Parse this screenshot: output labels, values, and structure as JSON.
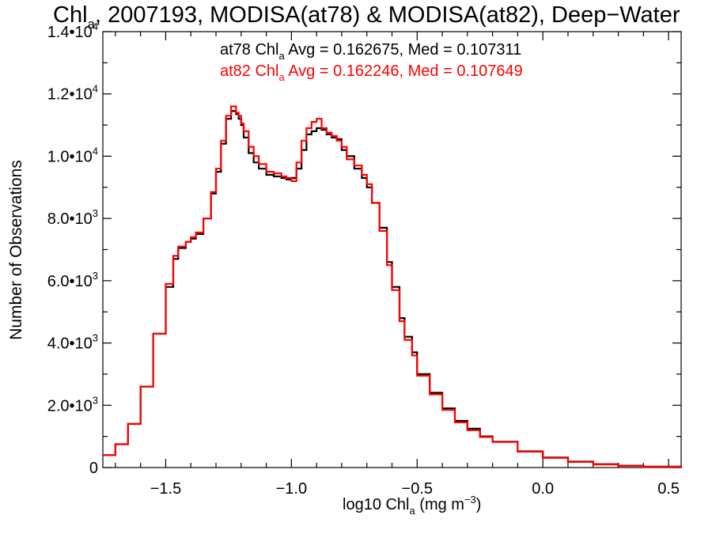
{
  "chart_data": {
    "type": "line",
    "title": {
      "text_before": "Chl",
      "sub": "a",
      "text_after": ", 2007193, MODISA(at78) & MODISA(at82), Deep-Water"
    },
    "xlabel": {
      "pre": "log10 Chl",
      "sub": "a",
      "mid": " (mg m",
      "sup": "-3",
      "post": ")"
    },
    "ylabel": "Number of Observations",
    "xlim": [
      -1.75,
      0.55
    ],
    "ylim": [
      0,
      14000
    ],
    "x_ticks": [
      {
        "value": -1.5,
        "label": "-1.5"
      },
      {
        "value": -1.0,
        "label": "-1.0"
      },
      {
        "value": -0.5,
        "label": "-0.5"
      },
      {
        "value": 0.0,
        "label": "0.0"
      },
      {
        "value": 0.5,
        "label": "0.5"
      }
    ],
    "y_ticks": [
      {
        "value": 0,
        "label": "0",
        "exp": ""
      },
      {
        "value": 2000,
        "label": "2.0•10",
        "exp": "3"
      },
      {
        "value": 4000,
        "label": "4.0•10",
        "exp": "3"
      },
      {
        "value": 6000,
        "label": "6.0•10",
        "exp": "3"
      },
      {
        "value": 8000,
        "label": "8.0•10",
        "exp": "3"
      },
      {
        "value": 10000,
        "label": "1.0•10",
        "exp": "4"
      },
      {
        "value": 12000,
        "label": "1.2•10",
        "exp": "4"
      },
      {
        "value": 14000,
        "label": "1.4•10",
        "exp": "4"
      }
    ],
    "grid": false,
    "series": [
      {
        "name": "at78",
        "color": "#000000",
        "stats": {
          "pre": "at78 Chl",
          "sub": "a",
          "post": " Avg = 0.162675, Med = 0.107311"
        },
        "x": [
          -1.75,
          -1.7,
          -1.65,
          -1.6,
          -1.55,
          -1.5,
          -1.47,
          -1.45,
          -1.42,
          -1.4,
          -1.38,
          -1.35,
          -1.32,
          -1.3,
          -1.28,
          -1.26,
          -1.24,
          -1.22,
          -1.21,
          -1.2,
          -1.19,
          -1.17,
          -1.15,
          -1.13,
          -1.1,
          -1.07,
          -1.04,
          -1.02,
          -1.0,
          -0.98,
          -0.96,
          -0.94,
          -0.92,
          -0.9,
          -0.88,
          -0.86,
          -0.84,
          -0.82,
          -0.8,
          -0.78,
          -0.75,
          -0.72,
          -0.7,
          -0.68,
          -0.65,
          -0.62,
          -0.6,
          -0.57,
          -0.55,
          -0.52,
          -0.5,
          -0.45,
          -0.4,
          -0.35,
          -0.3,
          -0.25,
          -0.2,
          -0.1,
          0.0,
          0.1,
          0.2,
          0.3,
          0.4,
          0.55
        ],
        "y": [
          400,
          750,
          1400,
          2600,
          4300,
          5800,
          6700,
          7050,
          7250,
          7350,
          7500,
          8000,
          8800,
          9500,
          10400,
          11200,
          11450,
          11350,
          11200,
          11000,
          10600,
          10100,
          9800,
          9600,
          9400,
          9350,
          9300,
          9250,
          9300,
          9600,
          10200,
          10700,
          10800,
          10900,
          10850,
          10700,
          10600,
          10550,
          10200,
          10000,
          9600,
          9300,
          9000,
          8500,
          7700,
          6600,
          5800,
          4800,
          4200,
          3700,
          3000,
          2400,
          1900,
          1500,
          1250,
          1000,
          830,
          520,
          320,
          190,
          110,
          60,
          30,
          0
        ]
      },
      {
        "name": "at82",
        "color": "#ff0000",
        "stats": {
          "pre": "at82 Chl",
          "sub": "a",
          "post": " Avg = 0.162246, Med = 0.107649"
        },
        "x": [
          -1.75,
          -1.7,
          -1.65,
          -1.6,
          -1.55,
          -1.5,
          -1.47,
          -1.45,
          -1.42,
          -1.4,
          -1.38,
          -1.35,
          -1.32,
          -1.3,
          -1.28,
          -1.26,
          -1.24,
          -1.22,
          -1.21,
          -1.2,
          -1.19,
          -1.17,
          -1.15,
          -1.13,
          -1.1,
          -1.07,
          -1.04,
          -1.02,
          -1.0,
          -0.98,
          -0.96,
          -0.94,
          -0.92,
          -0.9,
          -0.88,
          -0.86,
          -0.84,
          -0.82,
          -0.8,
          -0.78,
          -0.75,
          -0.72,
          -0.7,
          -0.68,
          -0.65,
          -0.62,
          -0.6,
          -0.57,
          -0.55,
          -0.52,
          -0.5,
          -0.45,
          -0.4,
          -0.35,
          -0.3,
          -0.25,
          -0.2,
          -0.1,
          0.0,
          0.1,
          0.2,
          0.3,
          0.4,
          0.55
        ],
        "y": [
          400,
          750,
          1400,
          2600,
          4300,
          5900,
          6800,
          7100,
          7250,
          7400,
          7550,
          8000,
          8850,
          9600,
          10500,
          11300,
          11600,
          11400,
          11300,
          11050,
          10800,
          10300,
          10000,
          9750,
          9500,
          9450,
          9350,
          9300,
          9200,
          9800,
          10500,
          10900,
          11100,
          11200,
          10900,
          10750,
          10650,
          10500,
          10300,
          9900,
          9700,
          9400,
          9100,
          8500,
          7600,
          6500,
          5700,
          4700,
          4100,
          3600,
          2950,
          2350,
          1850,
          1450,
          1200,
          980,
          820,
          510,
          310,
          180,
          100,
          55,
          25,
          0
        ]
      }
    ]
  }
}
